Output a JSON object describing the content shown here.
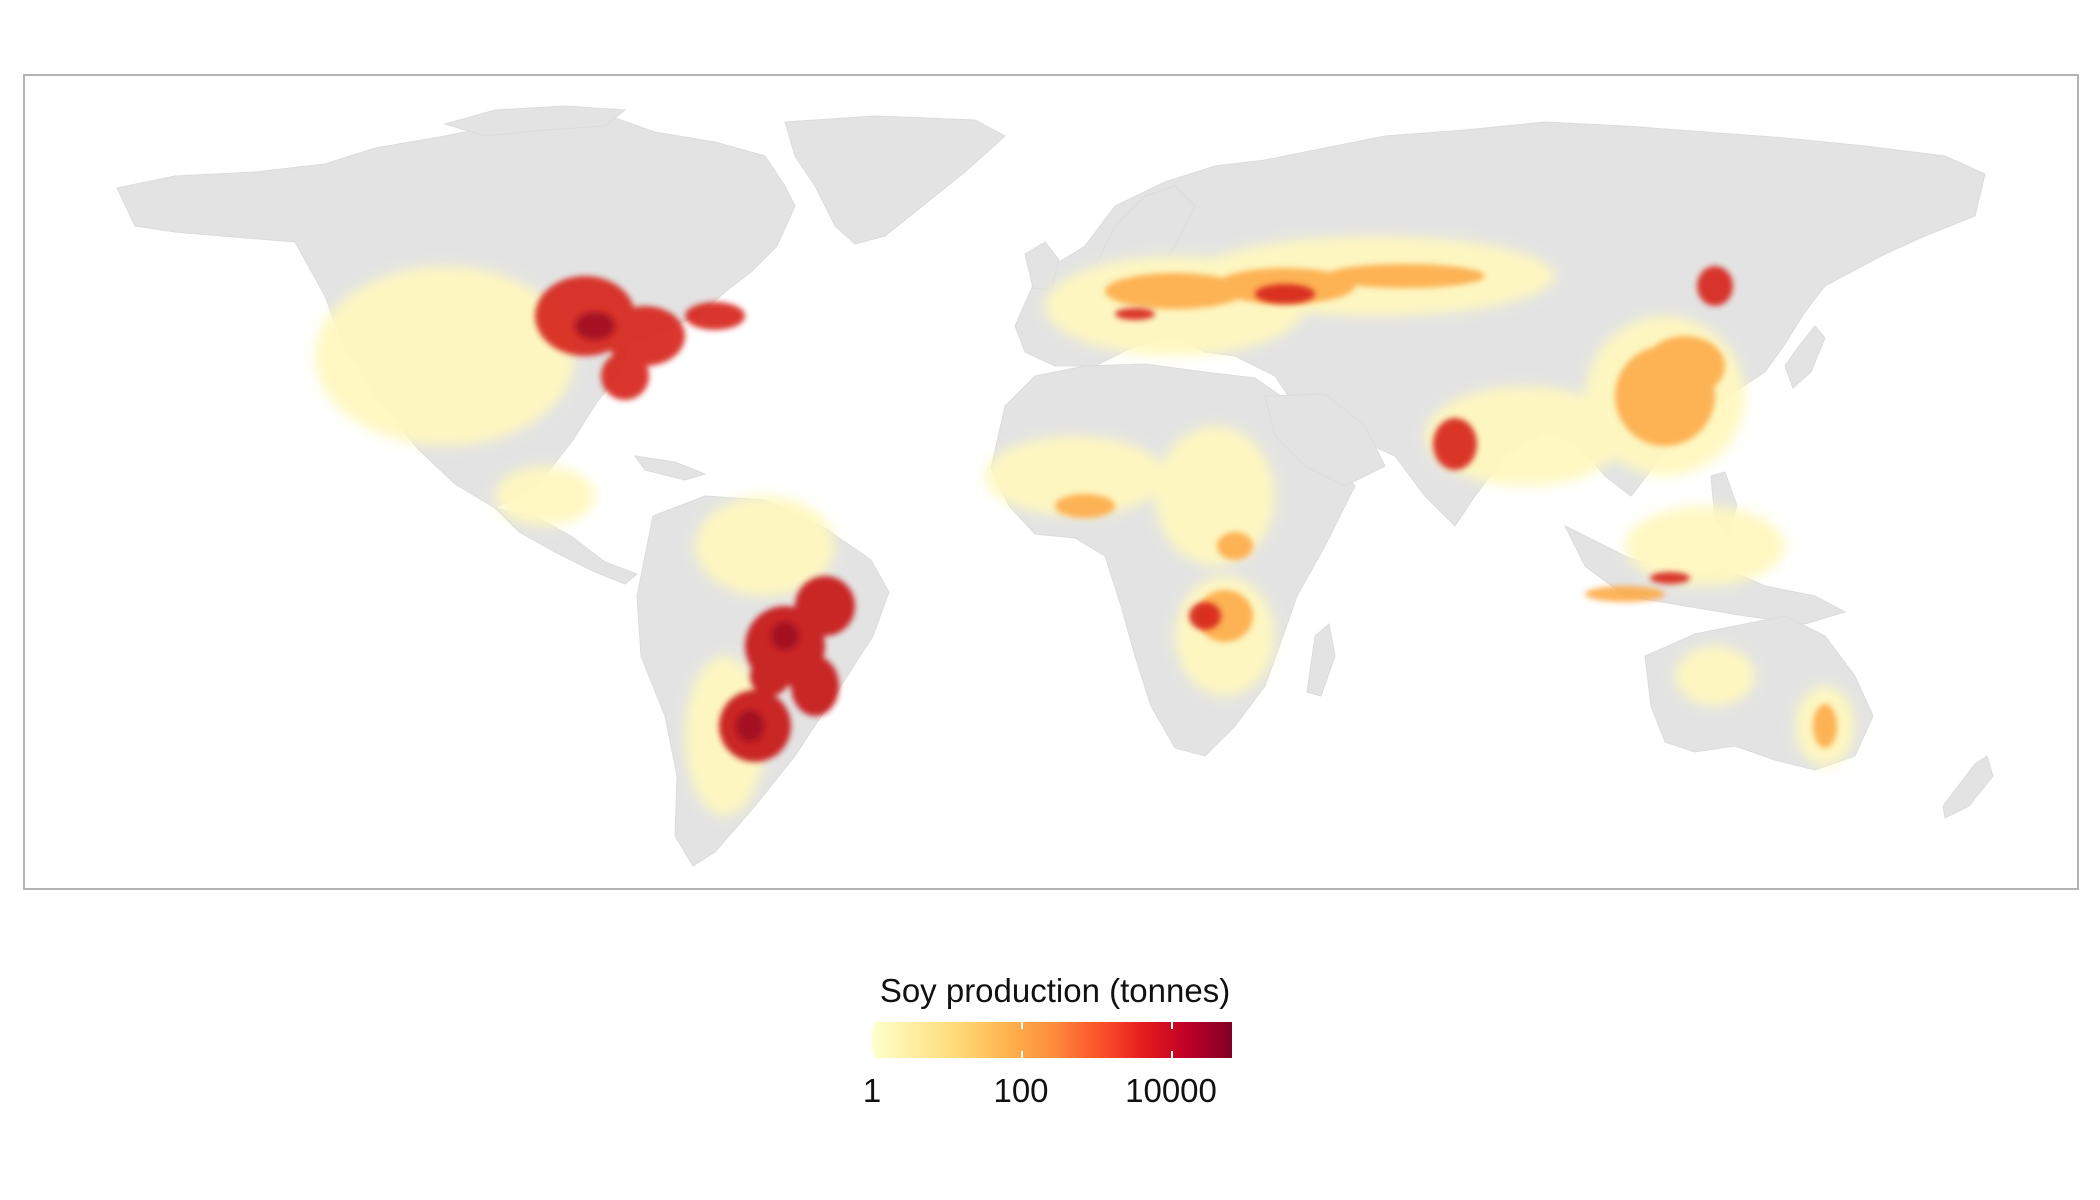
{
  "legend": {
    "title": "Soy production (tonnes)",
    "scale": "log10",
    "range": [
      1,
      50000
    ],
    "labels": [
      "1",
      "100",
      "10000"
    ],
    "colors": [
      "#ffffcc",
      "#ffeda0",
      "#fed976",
      "#feb24c",
      "#fd8d3c",
      "#fc4e2a",
      "#e31a1c",
      "#bd0026",
      "#800026"
    ]
  },
  "map": {
    "projection": "equirectangular",
    "land_color": "#e3e3e3",
    "border_color": "#b3b3b3"
  }
}
